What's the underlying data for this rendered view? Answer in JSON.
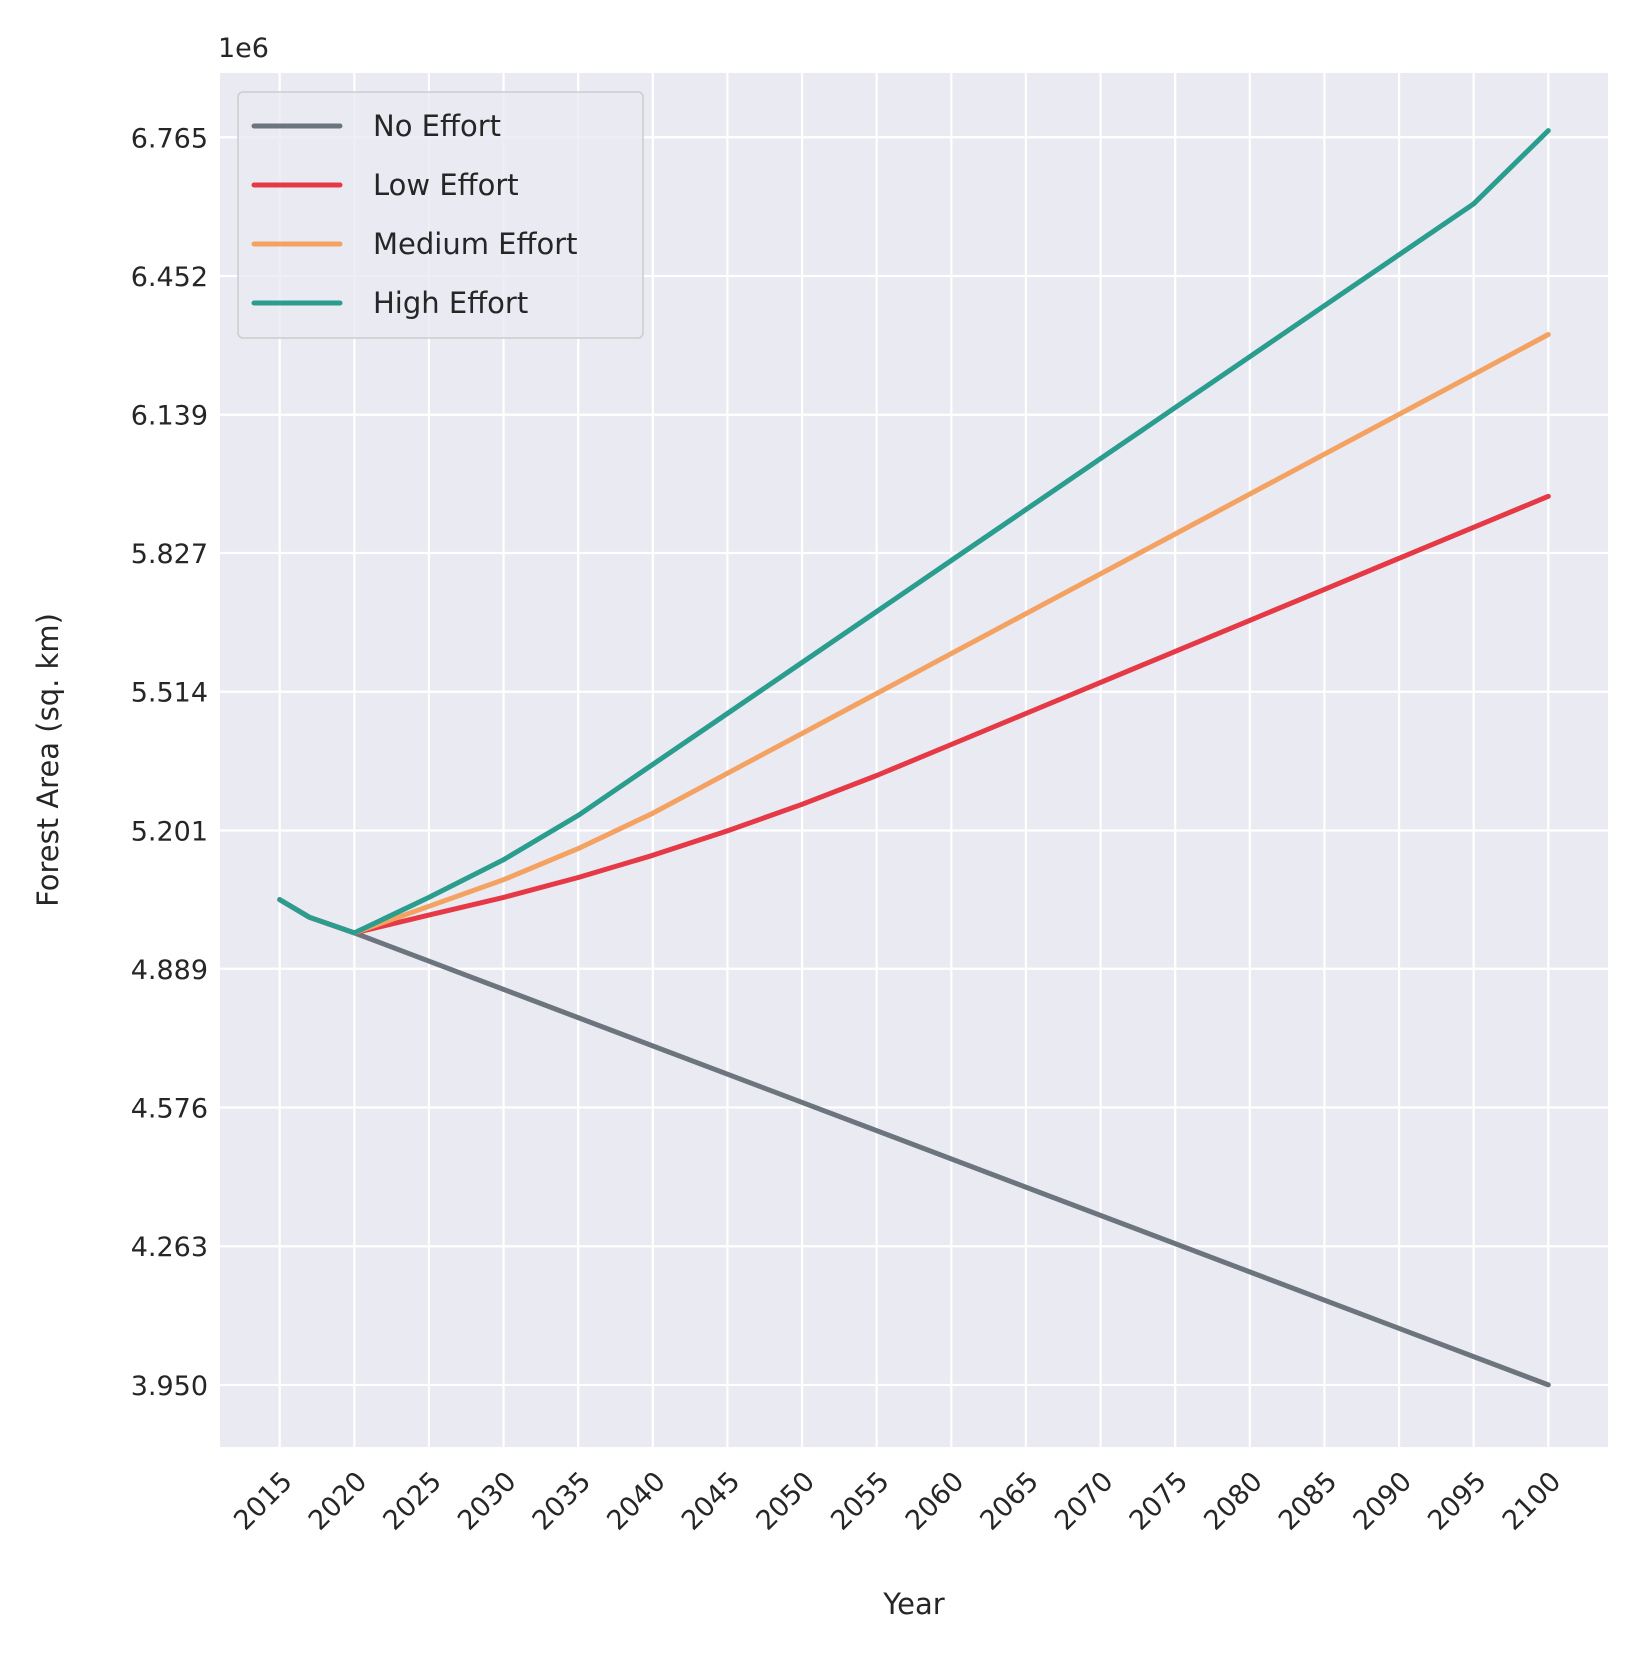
{
  "chart_data": {
    "type": "line",
    "title": "",
    "xlabel": "Year",
    "ylabel": "Forest Area (sq. km)",
    "offset_text": "1e6",
    "xlim": [
      2011,
      2104
    ],
    "ylim": [
      3.81,
      6.91
    ],
    "x_ticks": [
      "2015",
      "2020",
      "2025",
      "2030",
      "2035",
      "2040",
      "2045",
      "2050",
      "2055",
      "2060",
      "2065",
      "2070",
      "2075",
      "2080",
      "2085",
      "2090",
      "2095",
      "2100"
    ],
    "y_ticks": [
      "3.950",
      "4.263",
      "4.576",
      "4.889",
      "5.201",
      "5.514",
      "5.827",
      "6.139",
      "6.452",
      "6.765"
    ],
    "grid": true,
    "legend_position": "upper-left",
    "series": [
      {
        "name": "No Effort",
        "color": "#6c757d",
        "x": [
          2015,
          2017,
          2020,
          2100
        ],
        "y": [
          5.045,
          5.005,
          4.97,
          3.95
        ]
      },
      {
        "name": "Low Effort",
        "color": "#e63946",
        "x": [
          2015,
          2017,
          2020,
          2025,
          2030,
          2035,
          2040,
          2045,
          2050,
          2055,
          2060,
          2065,
          2070,
          2075,
          2080,
          2085,
          2090,
          2095,
          2100
        ],
        "y": [
          5.045,
          5.005,
          4.97,
          5.01,
          5.05,
          5.095,
          5.145,
          5.2,
          5.26,
          5.325,
          5.395,
          5.465,
          5.535,
          5.605,
          5.675,
          5.745,
          5.815,
          5.885,
          5.955
        ]
      },
      {
        "name": "Medium Effort",
        "color": "#f4a261",
        "x": [
          2015,
          2017,
          2020,
          2025,
          2030,
          2035,
          2040,
          2045,
          2050,
          2055,
          2060,
          2065,
          2070,
          2075,
          2080,
          2085,
          2090,
          2095,
          2100
        ],
        "y": [
          5.045,
          5.005,
          4.97,
          5.03,
          5.09,
          5.16,
          5.24,
          5.33,
          5.42,
          5.51,
          5.6,
          5.69,
          5.78,
          5.87,
          5.96,
          6.05,
          6.14,
          6.23,
          6.32
        ]
      },
      {
        "name": "High Effort",
        "color": "#2a9d8f",
        "x": [
          2015,
          2017,
          2020,
          2025,
          2030,
          2035,
          2040,
          2045,
          2050,
          2055,
          2060,
          2065,
          2070,
          2075,
          2080,
          2085,
          2090,
          2095,
          2100
        ],
        "y": [
          5.045,
          5.005,
          4.97,
          5.05,
          5.135,
          5.235,
          5.35,
          5.465,
          5.58,
          5.695,
          5.81,
          5.925,
          6.04,
          6.155,
          6.27,
          6.385,
          6.5,
          6.615,
          6.78
        ]
      }
    ]
  }
}
